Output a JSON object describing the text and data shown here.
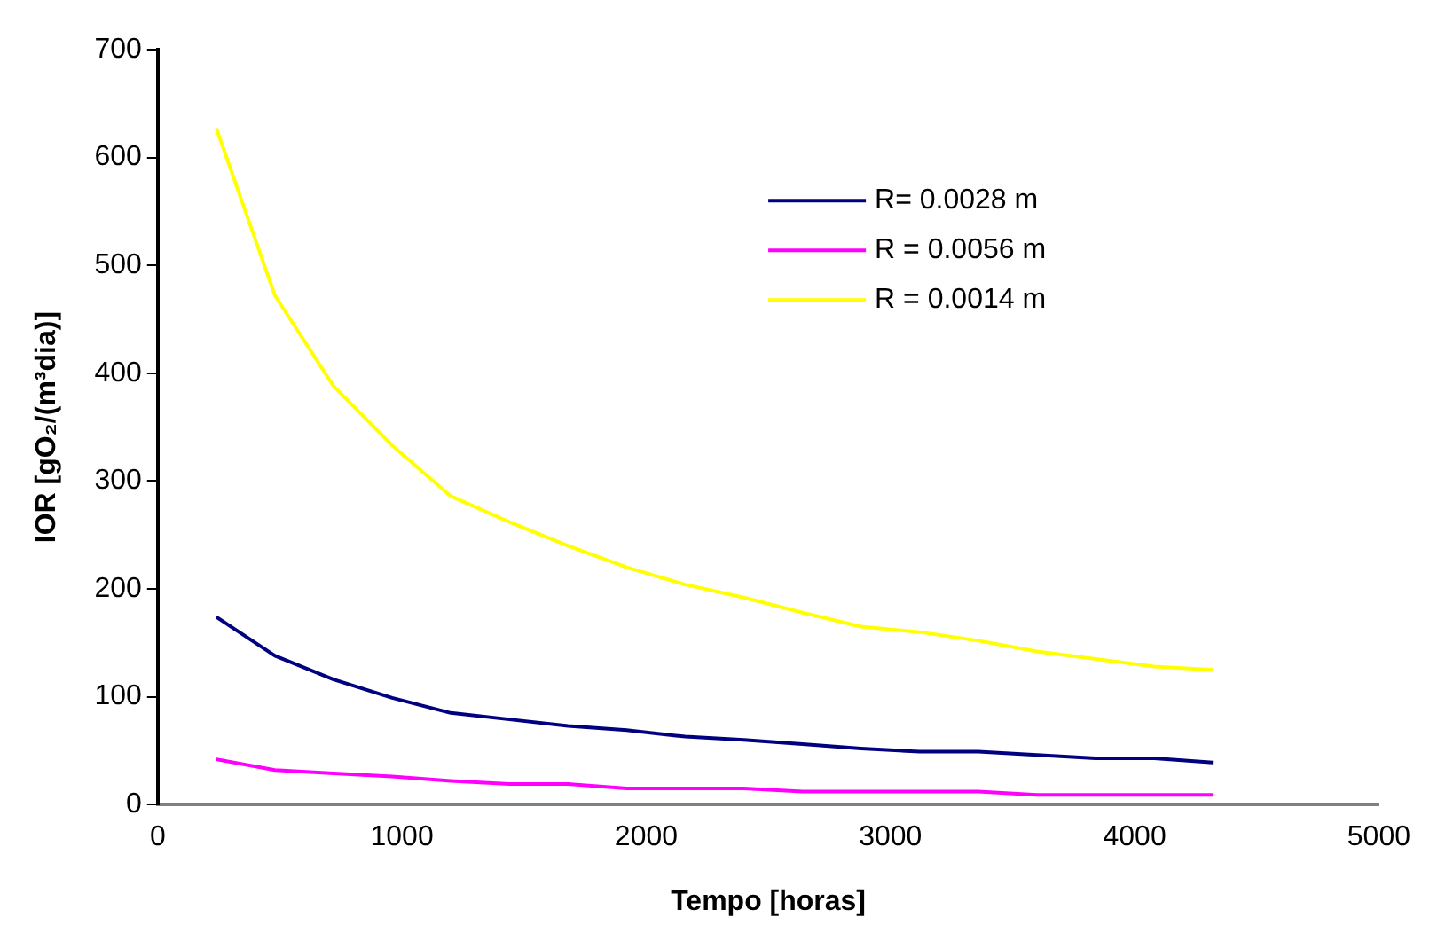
{
  "chart_data": {
    "type": "line",
    "xlabel": "Tempo [horas]",
    "ylabel": "IOR [gO₂/(m³dia)]",
    "x": [
      240,
      480,
      720,
      960,
      1200,
      1440,
      1680,
      1920,
      2160,
      2400,
      2640,
      2880,
      3120,
      3360,
      3600,
      3840,
      4080,
      4320
    ],
    "series": [
      {
        "name": "R= 0.0028 m",
        "color": "#000080",
        "values": [
          174,
          138,
          116,
          99,
          85,
          79,
          73,
          69,
          63,
          60,
          56,
          52,
          49,
          49,
          46,
          43,
          43,
          39
        ]
      },
      {
        "name": "R = 0.0056 m",
        "color": "#ff00ff",
        "values": [
          42,
          32,
          29,
          26,
          22,
          19,
          19,
          15,
          15,
          15,
          12,
          12,
          12,
          12,
          9,
          9,
          9,
          9
        ]
      },
      {
        "name": "R = 0.0014 m",
        "color": "#ffff00",
        "values": [
          627,
          472,
          388,
          333,
          286,
          262,
          240,
          220,
          204,
          192,
          178,
          165,
          160,
          152,
          142,
          135,
          128,
          125
        ]
      }
    ],
    "xlim": [
      0,
      5000
    ],
    "xticks": [
      0,
      1000,
      2000,
      3000,
      4000,
      5000
    ],
    "ylim": [
      0,
      700
    ],
    "yticks": [
      0,
      100,
      200,
      300,
      400,
      500,
      600,
      700
    ],
    "grid": false,
    "legend": "top right",
    "marker": "none",
    "line_style": "solid"
  }
}
